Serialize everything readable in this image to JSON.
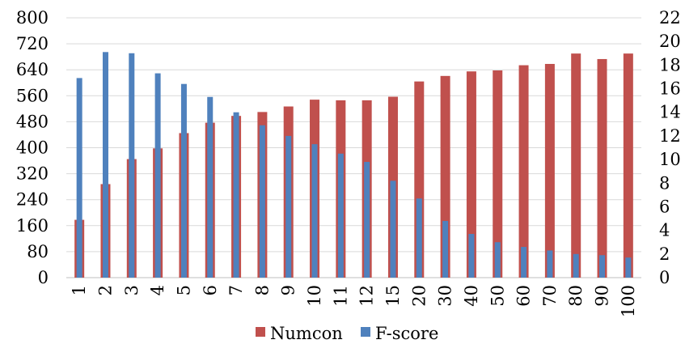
{
  "chart_data": {
    "type": "bar",
    "categories": [
      "1",
      "2",
      "3",
      "4",
      "5",
      "6",
      "7",
      "8",
      "9",
      "10",
      "11",
      "12",
      "15",
      "20",
      "30",
      "40",
      "50",
      "60",
      "70",
      "80",
      "90",
      "100"
    ],
    "series": [
      {
        "name": "Numcon",
        "axis": "left",
        "color": "#c0504d",
        "values": [
          178,
          288,
          365,
          398,
          445,
          477,
          498,
          510,
          527,
          548,
          546,
          546,
          557,
          604,
          621,
          635,
          638,
          654,
          658,
          690,
          673,
          690
        ]
      },
      {
        "name": "F-score",
        "axis": "right",
        "color": "#4f81bd",
        "values": [
          16.9,
          19.1,
          19.0,
          17.3,
          16.4,
          15.3,
          14.0,
          12.9,
          12.0,
          11.3,
          10.5,
          9.8,
          8.2,
          6.7,
          4.8,
          3.7,
          3.0,
          2.6,
          2.3,
          2.0,
          1.9,
          1.7
        ]
      }
    ],
    "y_left": {
      "min": 0,
      "max": 800,
      "ticks": [
        "0",
        "80",
        "160",
        "240",
        "320",
        "400",
        "480",
        "560",
        "640",
        "720",
        "800"
      ]
    },
    "y_right": {
      "min": 0,
      "max": 22,
      "ticks": [
        "0",
        "2",
        "4",
        "6",
        "8",
        "10",
        "12",
        "14",
        "16",
        "18",
        "20",
        "22"
      ]
    },
    "grid": true,
    "legend": {
      "position": "bottom",
      "entries": [
        "Numcon",
        "F-score"
      ]
    }
  }
}
